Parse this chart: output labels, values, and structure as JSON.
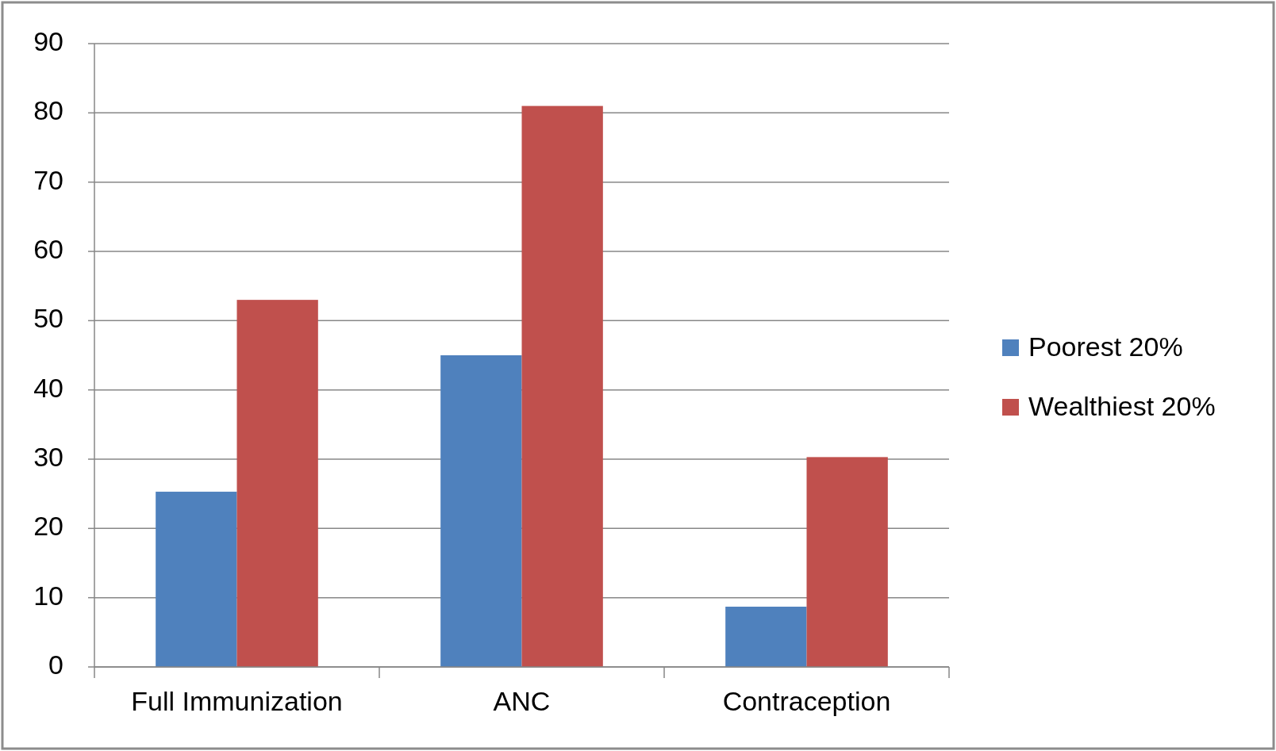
{
  "chart_data": {
    "type": "bar",
    "categories": [
      "Full Immunization",
      "ANC",
      "Contraception"
    ],
    "series": [
      {
        "name": "Poorest 20%",
        "color": "#4f81bd",
        "values": [
          25.3,
          45,
          8.7
        ]
      },
      {
        "name": "Wealthiest 20%",
        "color": "#c0504d",
        "values": [
          53,
          81,
          30.3
        ]
      }
    ],
    "ylim": [
      0,
      90
    ],
    "yticks": [
      0,
      10,
      20,
      30,
      40,
      50,
      60,
      70,
      80,
      90
    ],
    "grid": "y",
    "legend": "right"
  }
}
